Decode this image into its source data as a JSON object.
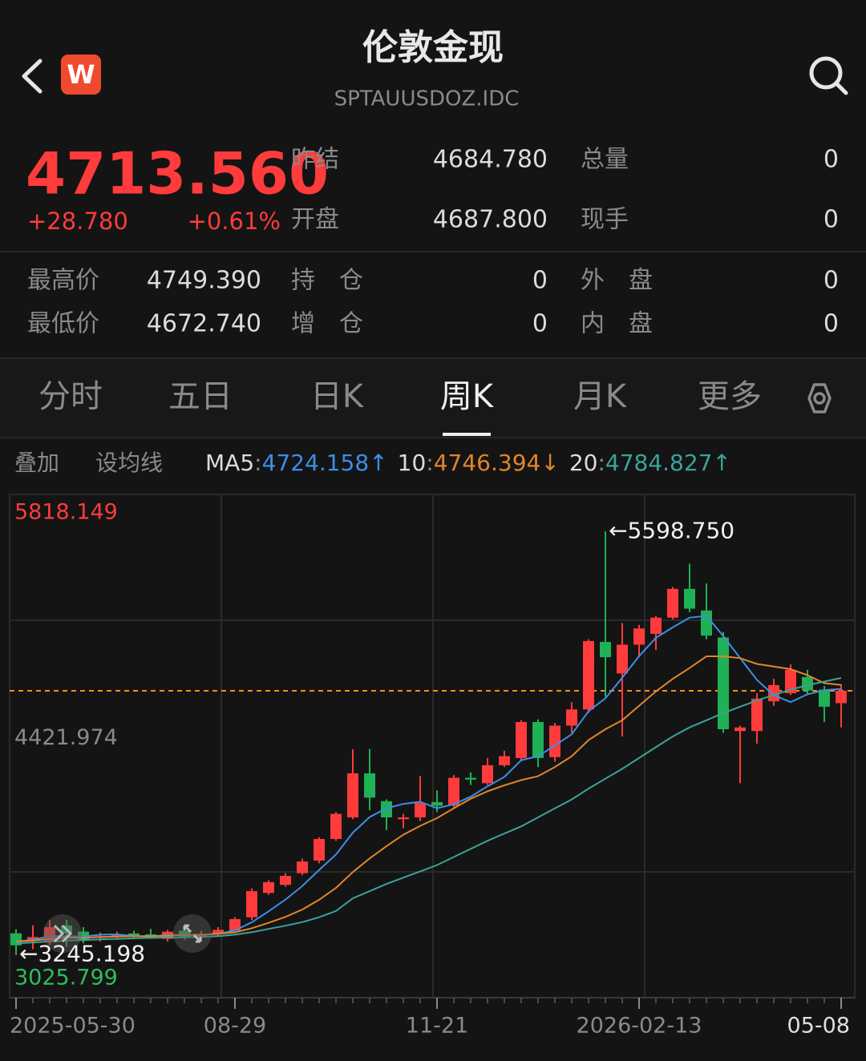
{
  "header": {
    "title": "伦敦金现",
    "subtitle": "SPTAUUSDOZ.IDC",
    "logo": "W"
  },
  "quote": {
    "price": "4713.560",
    "change": "+28.780",
    "change_pct": "+0.61%"
  },
  "stats_top": [
    [
      "昨结",
      "4684.780",
      "总量",
      "0"
    ],
    [
      "开盘",
      "4687.800",
      "现手",
      "0"
    ]
  ],
  "stats_bottom": [
    [
      "最高价",
      "4749.390",
      "持　仓",
      "0",
      "外　盘",
      "0"
    ],
    [
      "最低价",
      "4672.740",
      "增　仓",
      "0",
      "内　盘",
      "0"
    ]
  ],
  "tabs": [
    {
      "label": "分时",
      "active": false
    },
    {
      "label": "五日",
      "active": false
    },
    {
      "label": "日K",
      "active": false
    },
    {
      "label": "周K",
      "active": true
    },
    {
      "label": "月K",
      "active": false
    },
    {
      "label": "更多",
      "active": false
    }
  ],
  "toolbar": [
    "叠加",
    "设均线"
  ],
  "chart_data": {
    "type": "candlestick",
    "categories": [
      "2025-05-30",
      null,
      null,
      null,
      null,
      null,
      null,
      null,
      null,
      null,
      null,
      null,
      null,
      "08-29",
      null,
      null,
      null,
      null,
      null,
      null,
      null,
      null,
      null,
      null,
      null,
      "11-21",
      null,
      null,
      null,
      null,
      null,
      null,
      null,
      null,
      null,
      null,
      null,
      "2026-02-13",
      null,
      null,
      null,
      null,
      null,
      null,
      null,
      null,
      null,
      null,
      null,
      "05-08"
    ],
    "open": [
      3366,
      3330,
      3320,
      3410,
      3375,
      3340,
      3345,
      3365,
      3360,
      3335,
      3380,
      3345,
      3365,
      3380,
      3455,
      3590,
      3635,
      3700,
      3770,
      3890,
      4010,
      4255,
      4100,
      4000,
      4010,
      4095,
      4075,
      4230,
      4200,
      4300,
      4340,
      4540,
      4345,
      4520,
      4610,
      4985,
      4810,
      4970,
      5030,
      5120,
      5280,
      5160,
      5010,
      4490,
      4490,
      4655,
      4700,
      4790,
      4720,
      4645
    ],
    "high": [
      3388,
      3410,
      3440,
      3440,
      3400,
      3370,
      3375,
      3380,
      3390,
      3385,
      3410,
      3380,
      3400,
      3455,
      3615,
      3660,
      3700,
      3780,
      3900,
      4040,
      4389,
      4390,
      4110,
      4030,
      4240,
      4160,
      4245,
      4260,
      4340,
      4380,
      4550,
      4555,
      4535,
      4650,
      5000,
      5598.75,
      5090,
      5080,
      5130,
      5290,
      5420,
      5310,
      5040,
      4520,
      4700,
      4780,
      4860,
      4830,
      4740,
      4750
    ],
    "low": [
      3245.198,
      3277,
      3300,
      3290,
      3310,
      3320,
      3330,
      3340,
      3340,
      3320,
      3330,
      3320,
      3350,
      3370,
      3440,
      3580,
      3625,
      3690,
      3755,
      3880,
      4000,
      4050,
      3940,
      3950,
      3990,
      4040,
      4065,
      4190,
      4190,
      4290,
      4320,
      4290,
      4320,
      4480,
      4590,
      4680,
      4460,
      4900,
      4940,
      5110,
      5150,
      5000,
      4480,
      4200,
      4420,
      4630,
      4690,
      4690,
      4540,
      4510
    ],
    "close": [
      3299,
      3345,
      3400,
      3365,
      3330,
      3350,
      3355,
      3355,
      3350,
      3375,
      3345,
      3360,
      3385,
      3445,
      3600,
      3650,
      3685,
      3765,
      3890,
      4030,
      4255,
      4120,
      4010,
      4010,
      4090,
      4075,
      4230,
      4220,
      4300,
      4350,
      4540,
      4340,
      4520,
      4610,
      4990,
      4900,
      4970,
      5060,
      5120,
      5280,
      5170,
      5020,
      4500,
      4510,
      4670,
      4745,
      4830,
      4715,
      4625,
      4713.56
    ],
    "up_color": "#ff3b3b",
    "down_color": "#1fb155",
    "ylim": [
      3025.799,
      5818.149
    ],
    "yticks": [
      3025.799,
      4421.974,
      5818.149
    ],
    "ytick_colors": [
      "#2dbd5d",
      "#8a8a8a",
      "#ff3b3b"
    ],
    "legend_separator": ":",
    "series": [
      {
        "name": "MA5",
        "color": "#3b8fe8",
        "value_label": "4724.158",
        "trend": "↑",
        "values": [
          3320,
          3330,
          3350,
          3350,
          3348,
          3358,
          3360,
          3351,
          3348,
          3357,
          3356,
          3357,
          3363,
          3382,
          3427,
          3488,
          3553,
          3629,
          3718,
          3804,
          3925,
          4012,
          4061,
          4085,
          4097,
          4061,
          4083,
          4125,
          4183,
          4235,
          4328,
          4350,
          4410,
          4472,
          4600,
          4672,
          4786,
          4906,
          5008,
          5066,
          5120,
          5130,
          5018,
          4896,
          4774,
          4689,
          4651,
          4694,
          4717,
          4724.158
        ]
      },
      {
        "name": "10",
        "color": "#e0852a",
        "value_label": "4746.394",
        "trend": "↓",
        "values": [
          3320,
          3325,
          3335,
          3340,
          3340,
          3345,
          3348,
          3350,
          3350,
          3352,
          3357,
          3358,
          3363,
          3371,
          3394,
          3424,
          3457,
          3498,
          3552,
          3618,
          3706,
          3782,
          3850,
          3914,
          3963,
          4006,
          4061,
          4114,
          4155,
          4188,
          4217,
          4239,
          4290,
          4350,
          4440,
          4500,
          4550,
          4630,
          4710,
          4780,
          4840,
          4905,
          4905,
          4895,
          4863,
          4848,
          4834,
          4800,
          4756,
          4746.394
        ]
      },
      {
        "name": "20",
        "color": "#3aa39a",
        "value_label": "4784.827",
        "trend": "↑",
        "values": [
          3310,
          3315,
          3320,
          3325,
          3328,
          3332,
          3335,
          3338,
          3340,
          3342,
          3344,
          3346,
          3350,
          3358,
          3372,
          3390,
          3408,
          3428,
          3455,
          3490,
          3560,
          3600,
          3640,
          3675,
          3710,
          3745,
          3790,
          3835,
          3880,
          3920,
          3960,
          4010,
          4060,
          4110,
          4170,
          4225,
          4280,
          4340,
          4400,
          4460,
          4510,
          4550,
          4590,
          4625,
          4660,
          4690,
          4720,
          4745,
          4765,
          4784.827
        ]
      }
    ],
    "annotations": [
      {
        "arrow": "←",
        "label": "5598.750",
        "value": 5598.75
      },
      {
        "arrow": "←",
        "label": "3245.198",
        "value": 3245.198
      }
    ],
    "reference_line": {
      "value": 4713.56,
      "color": "#ff8c1a"
    }
  }
}
